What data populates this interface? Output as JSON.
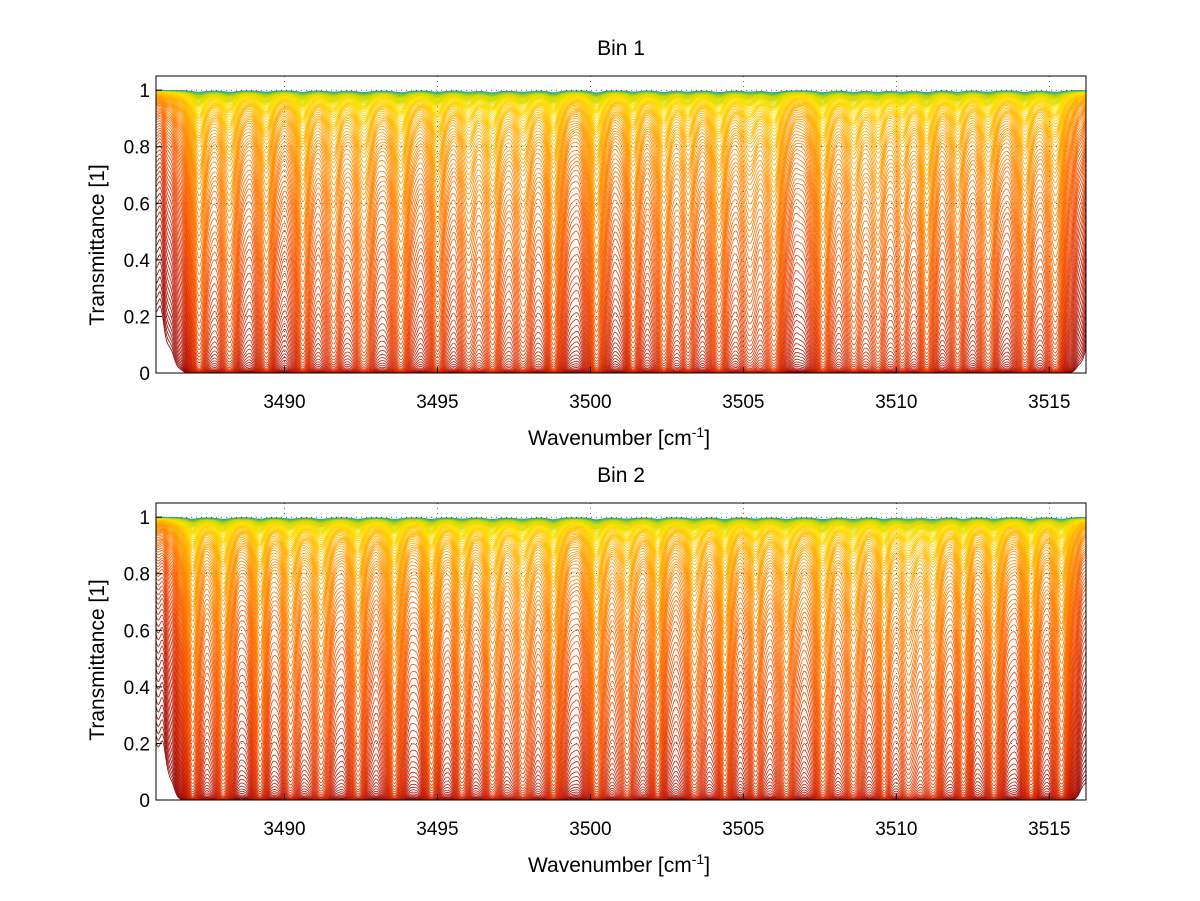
{
  "figure": {
    "background": "#ffffff",
    "colormap": [
      "#8b0000",
      "#c81a00",
      "#f24a00",
      "#ff7f00",
      "#ffb000",
      "#ffe000",
      "#c8d800",
      "#2ea88a"
    ]
  },
  "chart_data": [
    {
      "type": "line",
      "title": "Bin 1",
      "xlabel": "Wavenumber [cm",
      "xlabel_sup": "-1",
      "xlabel_end": "]",
      "ylabel": "Transmittance [1]",
      "xlim": [
        3485.8,
        3516.2
      ],
      "ylim": [
        0,
        1.05
      ],
      "xticks": [
        3490,
        3495,
        3500,
        3505,
        3510,
        3515
      ],
      "xtick_labels": [
        "3490",
        "3495",
        "3500",
        "3505",
        "3510",
        "3515"
      ],
      "yticks": [
        0,
        0.2,
        0.4,
        0.6,
        0.8,
        1
      ],
      "ytick_labels": [
        "0",
        "0.2",
        "0.4",
        "0.6",
        "0.8",
        "1"
      ],
      "grid": "dotted",
      "series_count": 110,
      "absorption_lines": [
        {
          "x": 3487.2,
          "depth": 0.85
        },
        {
          "x": 3488.2,
          "depth": 0.8
        },
        {
          "x": 3489.4,
          "depth": 0.75
        },
        {
          "x": 3490.6,
          "depth": 0.8
        },
        {
          "x": 3491.6,
          "depth": 0.7
        },
        {
          "x": 3492.6,
          "depth": 0.85
        },
        {
          "x": 3493.8,
          "depth": 0.95
        },
        {
          "x": 3495.0,
          "depth": 0.8
        },
        {
          "x": 3496.0,
          "depth": 0.65
        },
        {
          "x": 3496.8,
          "depth": 0.9
        },
        {
          "x": 3497.8,
          "depth": 0.75
        },
        {
          "x": 3498.8,
          "depth": 0.95
        },
        {
          "x": 3500.2,
          "depth": 1.0
        },
        {
          "x": 3501.4,
          "depth": 0.7
        },
        {
          "x": 3502.4,
          "depth": 0.8
        },
        {
          "x": 3503.2,
          "depth": 0.65
        },
        {
          "x": 3504.2,
          "depth": 0.9
        },
        {
          "x": 3505.2,
          "depth": 0.6
        },
        {
          "x": 3506.0,
          "depth": 0.95
        },
        {
          "x": 3507.6,
          "depth": 0.95
        },
        {
          "x": 3508.6,
          "depth": 0.75
        },
        {
          "x": 3509.4,
          "depth": 0.7
        },
        {
          "x": 3510.2,
          "depth": 0.65
        },
        {
          "x": 3511.0,
          "depth": 0.9
        },
        {
          "x": 3512.0,
          "depth": 0.7
        },
        {
          "x": 3513.0,
          "depth": 0.75
        },
        {
          "x": 3514.2,
          "depth": 0.8
        },
        {
          "x": 3515.2,
          "depth": 0.85
        }
      ]
    },
    {
      "type": "line",
      "title": "Bin 2",
      "xlabel": "Wavenumber [cm",
      "xlabel_sup": "-1",
      "xlabel_end": "]",
      "ylabel": "Transmittance [1]",
      "xlim": [
        3485.8,
        3516.2
      ],
      "ylim": [
        0,
        1.05
      ],
      "xticks": [
        3490,
        3495,
        3500,
        3505,
        3510,
        3515
      ],
      "xtick_labels": [
        "3490",
        "3495",
        "3500",
        "3505",
        "3510",
        "3515"
      ],
      "yticks": [
        0,
        0.2,
        0.4,
        0.6,
        0.8,
        1
      ],
      "ytick_labels": [
        "0",
        "0.2",
        "0.4",
        "0.6",
        "0.8",
        "1"
      ],
      "grid": "dotted",
      "series_count": 110,
      "absorption_lines": [
        {
          "x": 3487.0,
          "depth": 0.8
        },
        {
          "x": 3488.0,
          "depth": 0.85
        },
        {
          "x": 3489.2,
          "depth": 0.75
        },
        {
          "x": 3490.2,
          "depth": 0.7
        },
        {
          "x": 3491.2,
          "depth": 0.8
        },
        {
          "x": 3492.4,
          "depth": 0.75
        },
        {
          "x": 3493.6,
          "depth": 0.9
        },
        {
          "x": 3494.8,
          "depth": 0.85
        },
        {
          "x": 3495.8,
          "depth": 0.7
        },
        {
          "x": 3496.8,
          "depth": 0.8
        },
        {
          "x": 3497.8,
          "depth": 0.75
        },
        {
          "x": 3498.8,
          "depth": 0.9
        },
        {
          "x": 3500.2,
          "depth": 0.95
        },
        {
          "x": 3501.2,
          "depth": 0.7
        },
        {
          "x": 3502.2,
          "depth": 0.8
        },
        {
          "x": 3503.4,
          "depth": 0.7
        },
        {
          "x": 3504.4,
          "depth": 0.85
        },
        {
          "x": 3505.4,
          "depth": 0.65
        },
        {
          "x": 3506.4,
          "depth": 0.8
        },
        {
          "x": 3507.6,
          "depth": 0.9
        },
        {
          "x": 3508.6,
          "depth": 0.8
        },
        {
          "x": 3509.6,
          "depth": 0.75
        },
        {
          "x": 3510.4,
          "depth": 0.7
        },
        {
          "x": 3511.2,
          "depth": 0.85
        },
        {
          "x": 3512.2,
          "depth": 0.75
        },
        {
          "x": 3513.2,
          "depth": 0.8
        },
        {
          "x": 3514.4,
          "depth": 0.85
        },
        {
          "x": 3515.4,
          "depth": 0.8
        }
      ]
    }
  ]
}
